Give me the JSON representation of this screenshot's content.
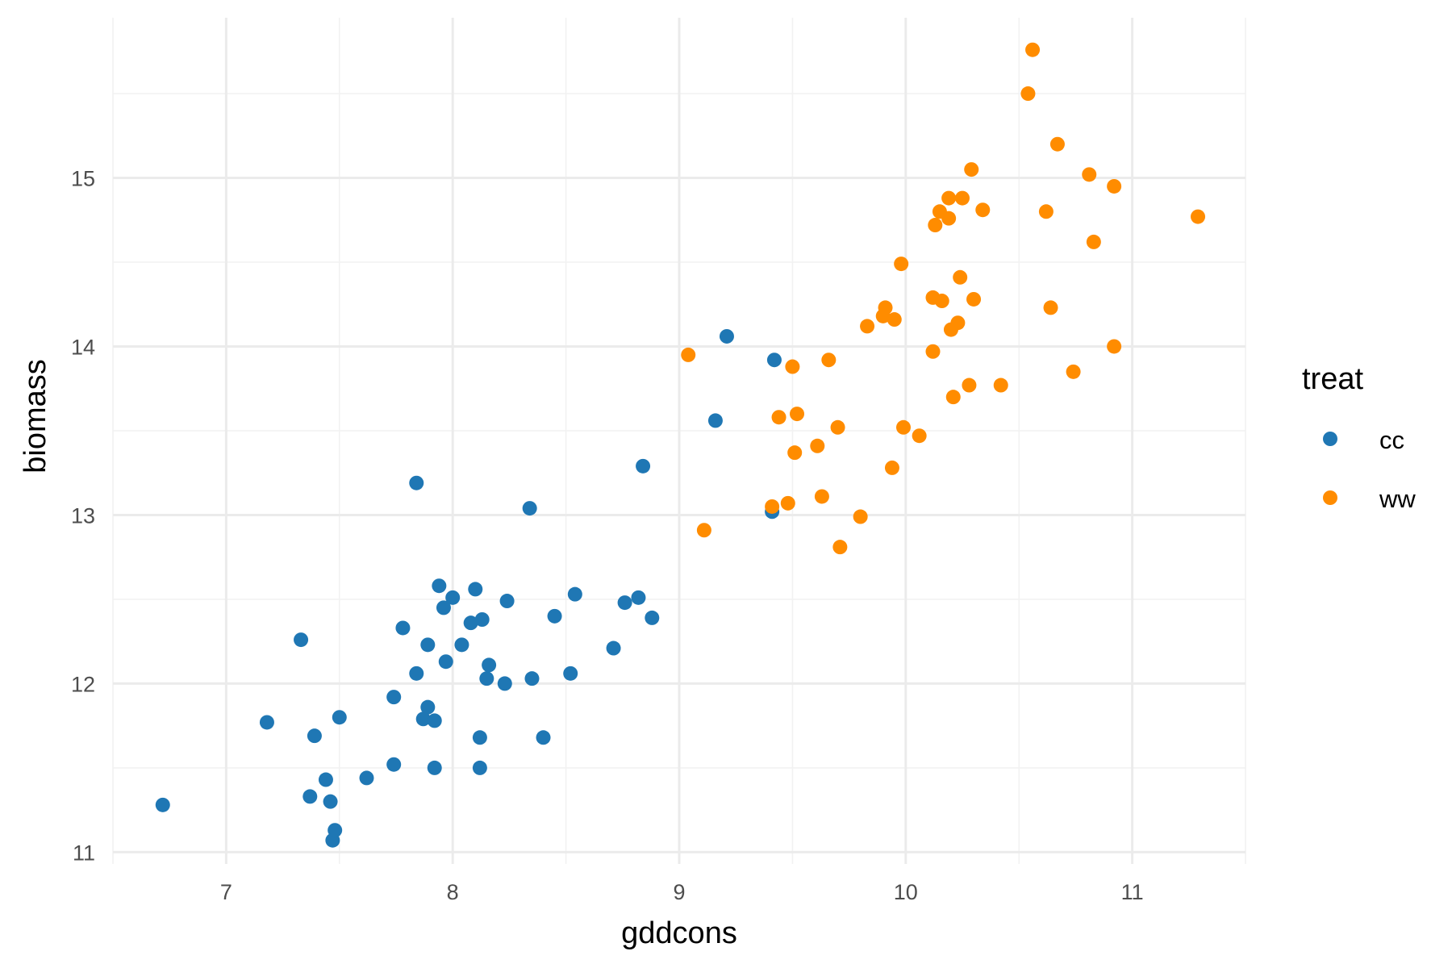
{
  "chart_data": {
    "type": "scatter",
    "xlabel": "gddcons",
    "ylabel": "biomass",
    "xlim": [
      6.5,
      11.5
    ],
    "ylim": [
      10.93,
      15.95
    ],
    "x_ticks": [
      7,
      8,
      9,
      10,
      11
    ],
    "x_tick_labels": [
      "7",
      "8",
      "9",
      "10",
      "11"
    ],
    "y_ticks": [
      11,
      12,
      13,
      14,
      15
    ],
    "y_tick_labels": [
      "11",
      "12",
      "13",
      "14",
      "15"
    ],
    "grid": true,
    "legend": {
      "title": "treat",
      "placement": "right",
      "entries": [
        {
          "label": "cc",
          "color": "#1F77B4"
        },
        {
          "label": "ww",
          "color": "#FF8C00"
        }
      ]
    },
    "series": [
      {
        "name": "cc",
        "color": "#1F77B4",
        "points": [
          [
            6.72,
            11.28
          ],
          [
            7.18,
            11.77
          ],
          [
            7.33,
            12.26
          ],
          [
            7.37,
            11.33
          ],
          [
            7.39,
            11.69
          ],
          [
            7.44,
            11.43
          ],
          [
            7.46,
            11.3
          ],
          [
            7.47,
            11.07
          ],
          [
            7.48,
            11.13
          ],
          [
            7.5,
            11.8
          ],
          [
            7.62,
            11.44
          ],
          [
            7.74,
            11.92
          ],
          [
            7.74,
            11.52
          ],
          [
            7.78,
            12.33
          ],
          [
            7.84,
            12.06
          ],
          [
            7.84,
            13.19
          ],
          [
            7.87,
            11.79
          ],
          [
            7.89,
            11.86
          ],
          [
            7.89,
            12.23
          ],
          [
            7.92,
            11.78
          ],
          [
            7.92,
            11.5
          ],
          [
            7.94,
            12.58
          ],
          [
            7.96,
            12.45
          ],
          [
            7.97,
            12.13
          ],
          [
            8.0,
            12.51
          ],
          [
            8.04,
            12.23
          ],
          [
            8.08,
            12.36
          ],
          [
            8.1,
            12.56
          ],
          [
            8.12,
            11.68
          ],
          [
            8.12,
            11.5
          ],
          [
            8.13,
            12.38
          ],
          [
            8.15,
            12.03
          ],
          [
            8.16,
            12.11
          ],
          [
            8.23,
            12.0
          ],
          [
            8.24,
            12.49
          ],
          [
            8.34,
            13.04
          ],
          [
            8.35,
            12.03
          ],
          [
            8.4,
            11.68
          ],
          [
            8.45,
            12.4
          ],
          [
            8.52,
            12.06
          ],
          [
            8.54,
            12.53
          ],
          [
            8.71,
            12.21
          ],
          [
            8.76,
            12.48
          ],
          [
            8.82,
            12.51
          ],
          [
            8.88,
            12.39
          ],
          [
            8.84,
            13.29
          ],
          [
            9.16,
            13.56
          ],
          [
            9.21,
            14.06
          ],
          [
            9.41,
            13.02
          ],
          [
            9.42,
            13.92
          ]
        ]
      },
      {
        "name": "ww",
        "color": "#FF8C00",
        "points": [
          [
            9.04,
            13.95
          ],
          [
            9.11,
            12.91
          ],
          [
            9.41,
            13.05
          ],
          [
            9.44,
            13.58
          ],
          [
            9.48,
            13.07
          ],
          [
            9.5,
            13.88
          ],
          [
            9.51,
            13.37
          ],
          [
            9.52,
            13.6
          ],
          [
            9.61,
            13.41
          ],
          [
            9.63,
            13.11
          ],
          [
            9.66,
            13.92
          ],
          [
            9.7,
            13.52
          ],
          [
            9.71,
            12.81
          ],
          [
            9.8,
            12.99
          ],
          [
            9.83,
            14.12
          ],
          [
            9.9,
            14.18
          ],
          [
            9.91,
            14.23
          ],
          [
            9.94,
            13.28
          ],
          [
            9.95,
            14.16
          ],
          [
            9.98,
            14.49
          ],
          [
            9.99,
            13.52
          ],
          [
            10.06,
            13.47
          ],
          [
            10.12,
            14.29
          ],
          [
            10.12,
            13.97
          ],
          [
            10.13,
            14.72
          ],
          [
            10.15,
            14.8
          ],
          [
            10.16,
            14.27
          ],
          [
            10.19,
            14.88
          ],
          [
            10.19,
            14.76
          ],
          [
            10.2,
            14.1
          ],
          [
            10.21,
            13.7
          ],
          [
            10.23,
            14.14
          ],
          [
            10.24,
            14.41
          ],
          [
            10.25,
            14.88
          ],
          [
            10.28,
            13.77
          ],
          [
            10.29,
            15.05
          ],
          [
            10.3,
            14.28
          ],
          [
            10.34,
            14.81
          ],
          [
            10.42,
            13.77
          ],
          [
            10.54,
            15.5
          ],
          [
            10.56,
            15.76
          ],
          [
            10.62,
            14.8
          ],
          [
            10.64,
            14.23
          ],
          [
            10.67,
            15.2
          ],
          [
            10.74,
            13.85
          ],
          [
            10.81,
            15.02
          ],
          [
            10.83,
            14.62
          ],
          [
            10.92,
            14.95
          ],
          [
            10.92,
            14.0
          ],
          [
            11.29,
            14.77
          ]
        ]
      }
    ]
  }
}
